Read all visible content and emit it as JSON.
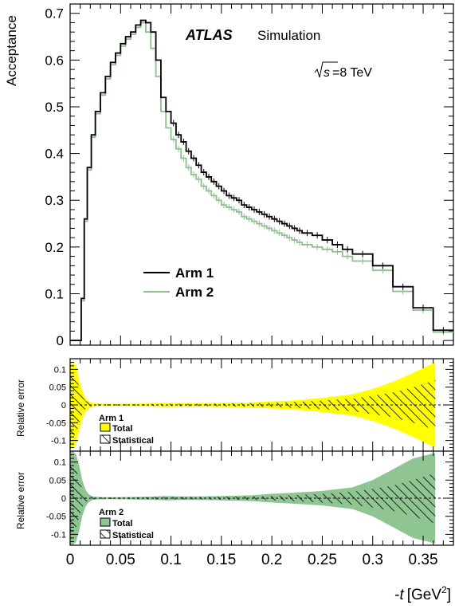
{
  "chart_data": [
    {
      "type": "line",
      "panel": "acceptance",
      "title": "",
      "ylabel": "Acceptance",
      "xlabel": "",
      "xlim": [
        0,
        0.38
      ],
      "ylim": [
        -0.01,
        0.72
      ],
      "yticks": [
        0,
        0.1,
        0.2,
        0.3,
        0.4,
        0.5,
        0.6,
        0.7
      ],
      "ytick_labels": [
        "0",
        "0.1",
        "0.2",
        "0.3",
        "0.4",
        "0.5",
        "0.6",
        "0.7"
      ],
      "annotations": {
        "experiment": "ATLAS",
        "experiment_suffix": "Simulation",
        "energy_sqrt": "s",
        "energy_value": "=8 TeV"
      },
      "legend": {
        "placement": "center-left"
      },
      "bin_edges": [
        0,
        0.011,
        0.014,
        0.017,
        0.021,
        0.025,
        0.03,
        0.035,
        0.04,
        0.045,
        0.05,
        0.055,
        0.06,
        0.065,
        0.07,
        0.075,
        0.08,
        0.085,
        0.09,
        0.095,
        0.1,
        0.105,
        0.11,
        0.115,
        0.12,
        0.125,
        0.13,
        0.135,
        0.14,
        0.145,
        0.15,
        0.155,
        0.16,
        0.165,
        0.17,
        0.175,
        0.18,
        0.185,
        0.19,
        0.195,
        0.2,
        0.205,
        0.21,
        0.215,
        0.22,
        0.225,
        0.23,
        0.24,
        0.25,
        0.26,
        0.27,
        0.28,
        0.3,
        0.32,
        0.34,
        0.36,
        0.38
      ],
      "series": [
        {
          "name": "Arm 1",
          "color": "#000000",
          "values": [
            0.0,
            0.09,
            0.26,
            0.37,
            0.44,
            0.49,
            0.53,
            0.565,
            0.595,
            0.615,
            0.635,
            0.65,
            0.66,
            0.675,
            0.685,
            0.68,
            0.66,
            0.6,
            0.52,
            0.49,
            0.465,
            0.44,
            0.425,
            0.405,
            0.39,
            0.375,
            0.36,
            0.35,
            0.34,
            0.33,
            0.32,
            0.31,
            0.305,
            0.3,
            0.29,
            0.285,
            0.28,
            0.275,
            0.27,
            0.265,
            0.26,
            0.255,
            0.25,
            0.245,
            0.24,
            0.235,
            0.23,
            0.225,
            0.215,
            0.205,
            0.195,
            0.185,
            0.16,
            0.115,
            0.07,
            0.022
          ]
        },
        {
          "name": "Arm 2",
          "color": "#8fbe8f",
          "values": [
            0.0,
            0.085,
            0.255,
            0.365,
            0.435,
            0.485,
            0.525,
            0.56,
            0.59,
            0.61,
            0.63,
            0.645,
            0.655,
            0.67,
            0.68,
            0.66,
            0.625,
            0.565,
            0.49,
            0.455,
            0.43,
            0.41,
            0.39,
            0.37,
            0.355,
            0.345,
            0.33,
            0.32,
            0.31,
            0.3,
            0.29,
            0.285,
            0.28,
            0.275,
            0.265,
            0.26,
            0.255,
            0.25,
            0.245,
            0.24,
            0.235,
            0.23,
            0.225,
            0.22,
            0.215,
            0.21,
            0.205,
            0.2,
            0.195,
            0.19,
            0.18,
            0.17,
            0.15,
            0.105,
            0.065,
            0.018
          ]
        }
      ]
    },
    {
      "type": "area",
      "panel": "relative-error-arm1",
      "ylabel": "Relative error",
      "ylim": [
        -0.13,
        0.13
      ],
      "yticks": [
        -0.1,
        -0.05,
        0,
        0.05,
        0.1
      ],
      "ytick_labels": [
        "-0.1",
        "-0.05",
        "0",
        "0.05",
        "0.1"
      ],
      "label": "Arm 1",
      "legend": [
        "Total",
        "Statistical"
      ],
      "total_color": "#ffff00",
      "x": [
        0,
        0.003,
        0.006,
        0.009,
        0.012,
        0.015,
        0.018,
        0.022,
        0.03,
        0.05,
        0.07,
        0.085,
        0.095,
        0.11,
        0.13,
        0.15,
        0.18,
        0.2,
        0.22,
        0.25,
        0.28,
        0.3,
        0.32,
        0.34,
        0.362
      ],
      "total_err": [
        0.12,
        0.12,
        0.11,
        0.07,
        0.04,
        0.02,
        0.012,
        0.005,
        0.003,
        0.003,
        0.004,
        0.005,
        0.006,
        0.005,
        0.005,
        0.006,
        0.007,
        0.01,
        0.012,
        0.02,
        0.03,
        0.045,
        0.065,
        0.09,
        0.12
      ],
      "stat_err": [
        0.1,
        0.09,
        0.08,
        0.05,
        0.025,
        0.012,
        0.007,
        0.003,
        0.002,
        0.002,
        0.002,
        0.003,
        0.003,
        0.003,
        0.003,
        0.004,
        0.005,
        0.006,
        0.008,
        0.012,
        0.018,
        0.026,
        0.035,
        0.05,
        0.07
      ]
    },
    {
      "type": "area",
      "panel": "relative-error-arm2",
      "ylabel": "Relative error",
      "xlabel_prefix": "-",
      "xlabel_var": "t",
      "xlabel_unit": "[GeV",
      "xlabel_exp": "2",
      "xlabel_close": "]",
      "xticks": [
        0,
        0.05,
        0.1,
        0.15,
        0.2,
        0.25,
        0.3,
        0.35
      ],
      "xtick_labels": [
        "0",
        "0.05",
        "0.1",
        "0.15",
        "0.2",
        "0.25",
        "0.3",
        "0.35"
      ],
      "ylim": [
        -0.13,
        0.13
      ],
      "yticks": [
        -0.1,
        -0.05,
        0,
        0.05,
        0.1
      ],
      "ytick_labels": [
        "-0.1",
        "-0.05",
        "0",
        "0.05",
        "0.1"
      ],
      "label": "Arm 2",
      "legend": [
        "Total",
        "Statistical"
      ],
      "total_color": "#8fc593",
      "x": [
        0,
        0.003,
        0.006,
        0.009,
        0.012,
        0.015,
        0.018,
        0.022,
        0.03,
        0.05,
        0.07,
        0.085,
        0.095,
        0.11,
        0.13,
        0.15,
        0.18,
        0.2,
        0.22,
        0.25,
        0.28,
        0.3,
        0.32,
        0.34,
        0.362
      ],
      "total_err": [
        0.13,
        0.13,
        0.12,
        0.09,
        0.05,
        0.025,
        0.012,
        0.005,
        0.003,
        0.003,
        0.004,
        0.005,
        0.006,
        0.005,
        0.005,
        0.006,
        0.008,
        0.012,
        0.015,
        0.02,
        0.03,
        0.05,
        0.08,
        0.11,
        0.125
      ],
      "stat_err": [
        0.1,
        0.09,
        0.08,
        0.05,
        0.025,
        0.012,
        0.007,
        0.003,
        0.002,
        0.002,
        0.002,
        0.003,
        0.003,
        0.003,
        0.003,
        0.004,
        0.005,
        0.006,
        0.008,
        0.012,
        0.018,
        0.026,
        0.035,
        0.05,
        0.07
      ]
    }
  ]
}
